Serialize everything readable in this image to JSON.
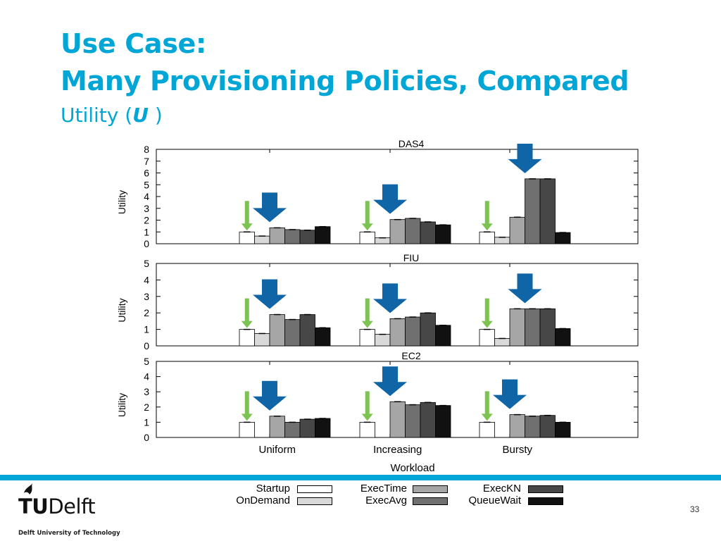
{
  "slide": {
    "title_line1": "Use Case:",
    "title_line2": "Many Provisioning Policies, Compared",
    "subtitle_prefix": "Utility (",
    "subtitle_symbol": "U",
    "subtitle_suffix": " )",
    "logo_tu": "TU",
    "logo_delft": "Delft",
    "logo_subtitle": "Delft University of Technology",
    "page_number": "33"
  },
  "colors": {
    "accent": "#00a6d6",
    "arrow_blue": "#0f65a6",
    "arrow_green": "#7dc352"
  },
  "chart_data": [
    {
      "type": "bar",
      "title": "DAS4",
      "ylabel": "Utility",
      "ylim": [
        0,
        8
      ],
      "yticks": [
        0,
        1,
        2,
        3,
        4,
        5,
        6,
        7,
        8
      ],
      "categories": [
        "Uniform",
        "Increasing",
        "Bursty"
      ],
      "series": [
        {
          "name": "Startup",
          "values": [
            1.0,
            1.0,
            1.0
          ]
        },
        {
          "name": "OnDemand",
          "values": [
            0.65,
            0.5,
            0.55
          ]
        },
        {
          "name": "ExecTime",
          "values": [
            1.35,
            2.05,
            2.25
          ]
        },
        {
          "name": "ExecAvg",
          "values": [
            1.2,
            2.15,
            5.5
          ]
        },
        {
          "name": "ExecKN",
          "values": [
            1.15,
            1.85,
            5.5
          ]
        },
        {
          "name": "QueueWait",
          "values": [
            1.45,
            1.6,
            0.95
          ]
        }
      ],
      "best_marker_index": [
        2,
        2,
        3
      ]
    },
    {
      "type": "bar",
      "title": "FIU",
      "ylabel": "Utility",
      "ylim": [
        0,
        5
      ],
      "yticks": [
        0,
        1,
        2,
        3,
        4,
        5
      ],
      "categories": [
        "Uniform",
        "Increasing",
        "Bursty"
      ],
      "series": [
        {
          "name": "Startup",
          "values": [
            1.0,
            1.0,
            1.0
          ]
        },
        {
          "name": "OnDemand",
          "values": [
            0.75,
            0.7,
            0.45
          ]
        },
        {
          "name": "ExecTime",
          "values": [
            1.9,
            1.65,
            2.25
          ]
        },
        {
          "name": "ExecAvg",
          "values": [
            1.6,
            1.75,
            2.25
          ]
        },
        {
          "name": "ExecKN",
          "values": [
            1.9,
            2.0,
            2.25
          ]
        },
        {
          "name": "QueueWait",
          "values": [
            1.1,
            1.25,
            1.05
          ]
        }
      ],
      "best_marker_index": [
        2,
        2,
        3
      ]
    },
    {
      "type": "bar",
      "title": "EC2",
      "ylabel": "Utility",
      "ylim": [
        0,
        5
      ],
      "yticks": [
        0,
        1,
        2,
        3,
        4,
        5
      ],
      "xlabel": "Workload",
      "categories": [
        "Uniform",
        "Increasing",
        "Bursty"
      ],
      "series": [
        {
          "name": "Startup",
          "values": [
            1.0,
            1.0,
            1.0
          ]
        },
        {
          "name": "OnDemand",
          "values": [
            0.0,
            0.0,
            0.0
          ]
        },
        {
          "name": "ExecTime",
          "values": [
            1.4,
            2.35,
            1.5
          ]
        },
        {
          "name": "ExecAvg",
          "values": [
            1.0,
            2.15,
            1.4
          ]
        },
        {
          "name": "ExecKN",
          "values": [
            1.2,
            2.3,
            1.45
          ]
        },
        {
          "name": "QueueWait",
          "values": [
            1.25,
            2.1,
            1.0
          ]
        }
      ],
      "best_marker_index": [
        2,
        2,
        2
      ]
    }
  ],
  "legend": [
    {
      "label": "Startup",
      "color": "#ffffff"
    },
    {
      "label": "OnDemand",
      "color": "#d9d9d9"
    },
    {
      "label": "ExecTime",
      "color": "#a6a6a6"
    },
    {
      "label": "ExecAvg",
      "color": "#707070"
    },
    {
      "label": "ExecKN",
      "color": "#474747"
    },
    {
      "label": "QueueWait",
      "color": "#111111"
    }
  ]
}
